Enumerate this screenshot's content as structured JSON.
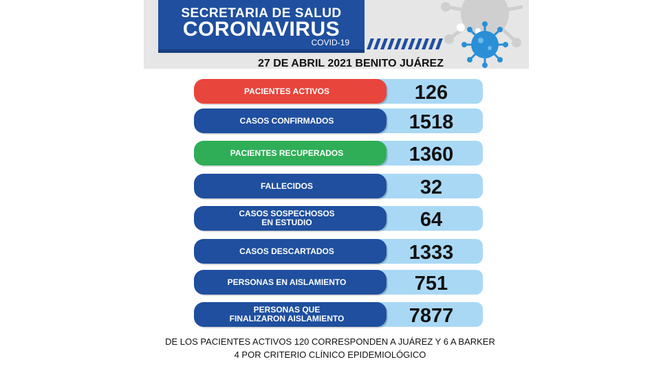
{
  "header": {
    "line1": "SECRETARIA DE SALUD",
    "line2": "CORONAVIRUS",
    "line3": "COVID-19"
  },
  "date_line": "27 DE ABRIL  2021 BENITO JUÁREZ",
  "rows": [
    {
      "label": "PACIENTES ACTIVOS",
      "value": "126",
      "color": "#e8453c"
    },
    {
      "label": "CASOS CONFIRMADOS",
      "value": "1518",
      "color": "#1f4f9e"
    },
    {
      "label": "PACIENTES RECUPERADOS",
      "value": "1360",
      "color": "#2fae57"
    },
    {
      "label": "FALLECIDOS",
      "value": "32",
      "color": "#1f4f9e"
    },
    {
      "label": "CASOS SOSPECHOSOS\nEN ESTUDIO",
      "value": "64",
      "color": "#1f4f9e"
    },
    {
      "label": "CASOS DESCARTADOS",
      "value": "1333",
      "color": "#1f4f9e"
    },
    {
      "label": "PERSONAS EN AISLAMIENTO",
      "value": "751",
      "color": "#1f4f9e"
    },
    {
      "label": "PERSONAS QUE\nFINALIZARON AISLAMIENTO",
      "value": "7877",
      "color": "#1f4f9e"
    }
  ],
  "footnote": {
    "line1": "DE LOS PACIENTES ACTIVOS 120 CORRESPONDEN A JUÁREZ Y 6 A BARKER",
    "line2": "4 POR CRITERIO CLÍNICO EPIDEMIOLÓGICO"
  },
  "icons": [
    "virus-icon",
    "virus-decoration-icon"
  ]
}
